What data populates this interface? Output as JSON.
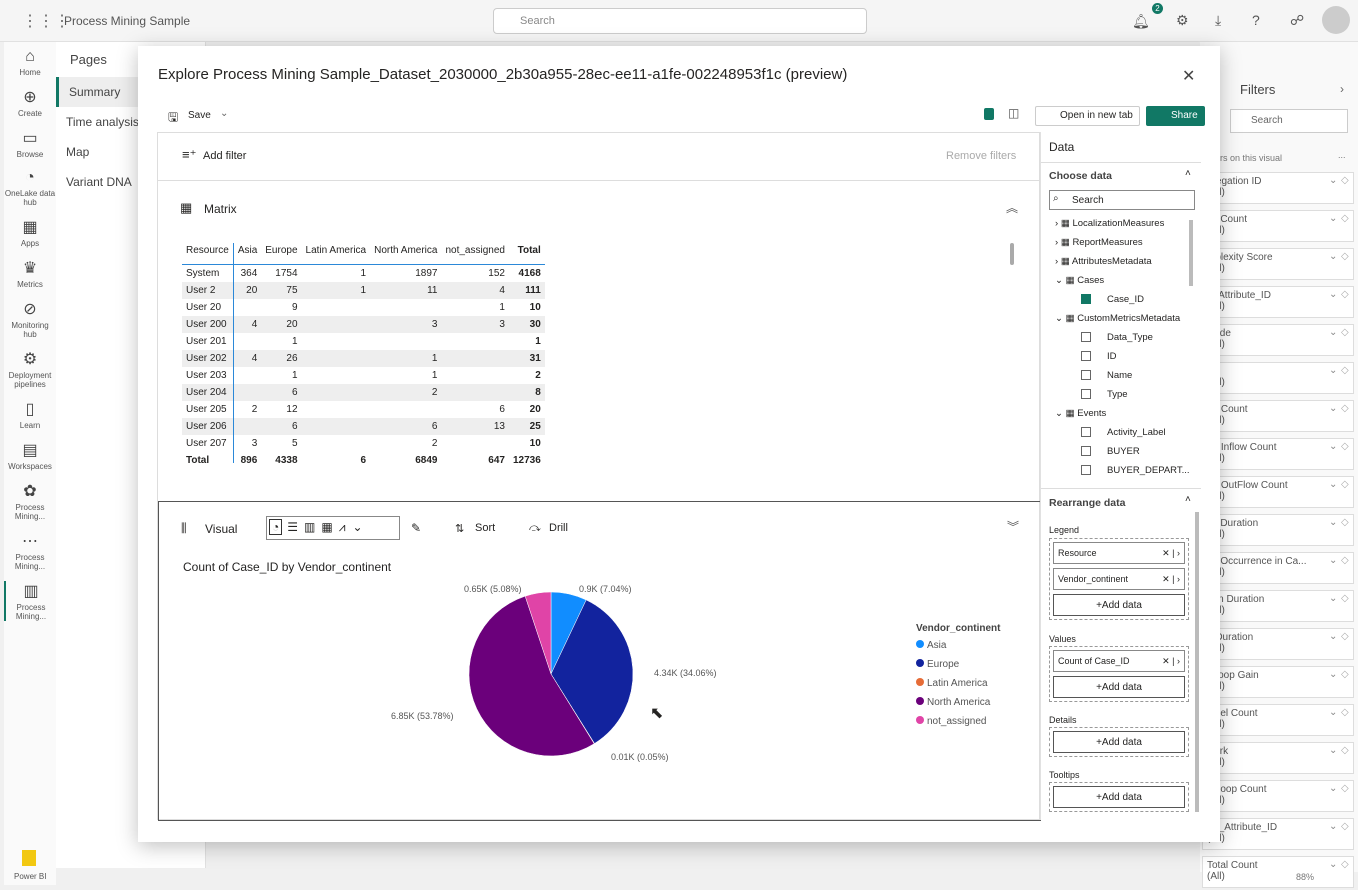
{
  "topbar": {
    "workspace": "Process Mining Sample",
    "search_placeholder": "Search",
    "notif_count": "2"
  },
  "leftnav": [
    {
      "icon": "⌂",
      "label": "Home"
    },
    {
      "icon": "⊕",
      "label": "Create"
    },
    {
      "icon": "▭",
      "label": "Browse"
    },
    {
      "icon": "◔",
      "label": "OneLake data hub"
    },
    {
      "icon": "▦",
      "label": "Apps"
    },
    {
      "icon": "♛",
      "label": "Metrics"
    },
    {
      "icon": "⊘",
      "label": "Monitoring hub"
    },
    {
      "icon": "⚙",
      "label": "Deployment pipelines"
    },
    {
      "icon": "▯",
      "label": "Learn"
    },
    {
      "icon": "▤",
      "label": "Workspaces"
    },
    {
      "icon": "✿",
      "label": "Process Mining..."
    },
    {
      "icon": "⋯",
      "label": "Process Mining..."
    },
    {
      "icon": "▥",
      "label": "Process Mining..."
    }
  ],
  "powerbi": "Power BI",
  "pages": {
    "title": "Pages",
    "items": [
      "Summary",
      "Time analysis",
      "Map",
      "Variant DNA"
    ]
  },
  "filters": {
    "title": "Filters",
    "search": "Search",
    "section": "rs on this visual",
    "more": "...",
    "items": [
      "gregation ID",
      "se Count",
      "mplexity Score",
      "d_Attribute_ID",
      "Node",
      "bel",
      "op Count",
      "op Inflow Count",
      "op OutFlow Count",
      "ax Duration",
      "ax Occurrence in Ca...",
      "ean Duration",
      "n Duration",
      "t Loop Gain",
      "rallel Count",
      "work",
      "lf Loop Count",
      "art_Attribute_ID",
      "Total Count"
    ],
    "all": "(All)",
    "zoom": "88%"
  },
  "modal": {
    "title": "Explore Process Mining Sample_Dataset_2030000_2b30a955-28ec-ee11-a1fe-002248953f1c (preview)",
    "save": "Save",
    "open_tab": "Open in new tab",
    "share": "Share",
    "add_filter": "Add filter",
    "remove_filters": "Remove filters",
    "matrix_title": "Matrix",
    "visual_title": "Visual",
    "sort": "Sort",
    "drill": "Drill"
  },
  "matrix": {
    "headers": [
      "Resource",
      "Asia",
      "Europe",
      "Latin America",
      "North America",
      "not_assigned",
      "Total"
    ],
    "rows": [
      [
        "System",
        "364",
        "1754",
        "1",
        "1897",
        "152",
        "4168"
      ],
      [
        "User 2",
        "20",
        "75",
        "1",
        "11",
        "4",
        "111"
      ],
      [
        "User 20",
        "",
        "9",
        "",
        "",
        "1",
        "10"
      ],
      [
        "User 200",
        "4",
        "20",
        "",
        "3",
        "3",
        "30"
      ],
      [
        "User 201",
        "",
        "1",
        "",
        "",
        "",
        "1"
      ],
      [
        "User 202",
        "4",
        "26",
        "",
        "1",
        "",
        "31"
      ],
      [
        "User 203",
        "",
        "1",
        "",
        "1",
        "",
        "2"
      ],
      [
        "User 204",
        "",
        "6",
        "",
        "2",
        "",
        "8"
      ],
      [
        "User 205",
        "2",
        "12",
        "",
        "",
        "6",
        "20"
      ],
      [
        "User 206",
        "",
        "6",
        "",
        "6",
        "13",
        "25"
      ],
      [
        "User 207",
        "3",
        "5",
        "",
        "2",
        "",
        "10"
      ]
    ],
    "total": [
      "Total",
      "896",
      "4338",
      "6",
      "6849",
      "647",
      "12736"
    ]
  },
  "chart_data": {
    "type": "pie",
    "title": "Count of Case_ID by Vendor_continent",
    "legend_title": "Vendor_continent",
    "legend_placement": "right",
    "categories": [
      "Asia",
      "Europe",
      "Latin America",
      "North America",
      "not_assigned"
    ],
    "values": [
      0.9,
      4.34,
      0.01,
      6.85,
      0.65
    ],
    "percents": [
      7.04,
      34.06,
      0.05,
      53.78,
      5.08
    ],
    "labels": [
      "0.9K (7.04%)",
      "4.34K (34.06%)",
      "0.01K (0.05%)",
      "6.85K (53.78%)",
      "0.65K (5.08%)"
    ],
    "colors": [
      "#118DFF",
      "#12239E",
      "#E66C37",
      "#6B007B",
      "#E044A7"
    ]
  },
  "data_pane": {
    "title": "Data",
    "choose": "Choose data",
    "search": "Search",
    "tree": [
      {
        "t": "LocalizationMeasures",
        "lvl": 0,
        "k": "tbl"
      },
      {
        "t": "ReportMeasures",
        "lvl": 0,
        "k": "tbl"
      },
      {
        "t": "AttributesMetadata",
        "lvl": 0,
        "k": "tbl"
      },
      {
        "t": "Cases",
        "lvl": 0,
        "k": "open"
      },
      {
        "t": "Case_ID",
        "lvl": 1,
        "k": "checked"
      },
      {
        "t": "CustomMetricsMetadata",
        "lvl": 0,
        "k": "open"
      },
      {
        "t": "Data_Type",
        "lvl": 1,
        "k": "cb"
      },
      {
        "t": "ID",
        "lvl": 1,
        "k": "cb"
      },
      {
        "t": "Name",
        "lvl": 1,
        "k": "cb"
      },
      {
        "t": "Type",
        "lvl": 1,
        "k": "cb"
      },
      {
        "t": "Events",
        "lvl": 0,
        "k": "open"
      },
      {
        "t": "Activity_Label",
        "lvl": 1,
        "k": "cb"
      },
      {
        "t": "BUYER",
        "lvl": 1,
        "k": "cb"
      },
      {
        "t": "BUYER_DEPART...",
        "lvl": 1,
        "k": "cb"
      }
    ],
    "rearrange": "Rearrange data",
    "legend": "Legend",
    "legend_fields": [
      "Resource",
      "Vendor_continent"
    ],
    "values": "Values",
    "values_fields": [
      "Count of Case_ID"
    ],
    "details": "Details",
    "tooltips": "Tooltips",
    "add": "+Add data"
  }
}
